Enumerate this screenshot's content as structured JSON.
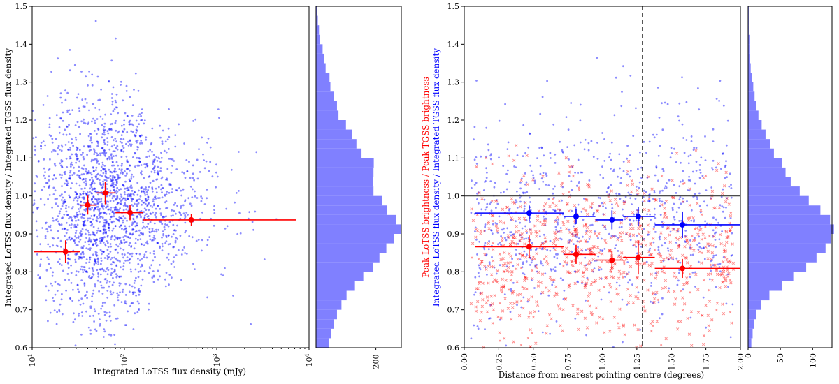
{
  "chart_data": [
    {
      "type": "scatter",
      "panel": "left",
      "xlabel": "Integrated LoTSS flux density (mJy)",
      "ylabel": "Integrated LoTSS flux density / Integrated TGSS flux density",
      "xscale": "log",
      "xlim": [
        10,
        10000
      ],
      "ylim": [
        0.6,
        1.5
      ],
      "x_ticks": [
        10,
        100,
        1000,
        10000
      ],
      "x_tick_labels": [
        {
          "base": "10",
          "exp": "1"
        },
        {
          "base": "10",
          "exp": "2"
        },
        {
          "base": "10",
          "exp": "3"
        },
        {
          "base": "10",
          "exp": "4"
        }
      ],
      "y_ticks": [
        "0.6",
        "0.7",
        "0.8",
        "0.9",
        "1.0",
        "1.1",
        "1.2",
        "1.3",
        "1.4",
        "1.5"
      ],
      "scatter_color": "#0000ff",
      "binned_color": "#ff0000",
      "binned_points": [
        {
          "x": 23,
          "y": 0.853,
          "xerr": [
            10.5,
            33
          ],
          "yerr": 0.03
        },
        {
          "x": 40,
          "y": 0.976,
          "xerr": [
            33,
            50
          ],
          "yerr": 0.025
        },
        {
          "x": 62,
          "y": 1.008,
          "xerr": [
            50,
            80
          ],
          "yerr": 0.03
        },
        {
          "x": 115,
          "y": 0.956,
          "xerr": [
            80,
            160
          ],
          "yerr": 0.02
        },
        {
          "x": 530,
          "y": 0.937,
          "xerr": [
            160,
            7200
          ],
          "yerr": 0.015
        }
      ]
    },
    {
      "type": "histogram",
      "panel": "left-marginal",
      "orientation": "horizontal",
      "xlim": [
        0,
        285
      ],
      "x_ticks": [
        "200"
      ],
      "bins": [
        {
          "y": [
            0.6,
            0.625
          ],
          "count": 42
        },
        {
          "y": [
            0.625,
            0.65
          ],
          "count": 50
        },
        {
          "y": [
            0.65,
            0.675
          ],
          "count": 60
        },
        {
          "y": [
            0.675,
            0.7
          ],
          "count": 70
        },
        {
          "y": [
            0.7,
            0.725
          ],
          "count": 85
        },
        {
          "y": [
            0.725,
            0.75
          ],
          "count": 102
        },
        {
          "y": [
            0.75,
            0.775
          ],
          "count": 130
        },
        {
          "y": [
            0.775,
            0.8
          ],
          "count": 158
        },
        {
          "y": [
            0.8,
            0.825
          ],
          "count": 190
        },
        {
          "y": [
            0.825,
            0.85
          ],
          "count": 212
        },
        {
          "y": [
            0.85,
            0.875
          ],
          "count": 235
        },
        {
          "y": [
            0.875,
            0.9
          ],
          "count": 260
        },
        {
          "y": [
            0.9,
            0.925
          ],
          "count": 283
        },
        {
          "y": [
            0.925,
            0.95
          ],
          "count": 268
        },
        {
          "y": [
            0.95,
            0.975
          ],
          "count": 237
        },
        {
          "y": [
            0.975,
            1.0
          ],
          "count": 220
        },
        {
          "y": [
            1.0,
            1.025
          ],
          "count": 192
        },
        {
          "y": [
            1.025,
            1.05
          ],
          "count": 190
        },
        {
          "y": [
            1.05,
            1.075
          ],
          "count": 192
        },
        {
          "y": [
            1.075,
            1.1
          ],
          "count": 193
        },
        {
          "y": [
            1.1,
            1.125
          ],
          "count": 152
        },
        {
          "y": [
            1.125,
            1.15
          ],
          "count": 135
        },
        {
          "y": [
            1.15,
            1.175
          ],
          "count": 120
        },
        {
          "y": [
            1.175,
            1.2
          ],
          "count": 100
        },
        {
          "y": [
            1.2,
            1.225
          ],
          "count": 75
        },
        {
          "y": [
            1.225,
            1.25
          ],
          "count": 70
        },
        {
          "y": [
            1.25,
            1.275
          ],
          "count": 60
        },
        {
          "y": [
            1.275,
            1.3
          ],
          "count": 48
        },
        {
          "y": [
            1.3,
            1.325
          ],
          "count": 45
        },
        {
          "y": [
            1.325,
            1.35
          ],
          "count": 32
        },
        {
          "y": [
            1.35,
            1.375
          ],
          "count": 28
        },
        {
          "y": [
            1.375,
            1.4
          ],
          "count": 22
        },
        {
          "y": [
            1.4,
            1.425
          ],
          "count": 14
        },
        {
          "y": [
            1.425,
            1.45
          ],
          "count": 10
        },
        {
          "y": [
            1.45,
            1.475
          ],
          "count": 6
        },
        {
          "y": [
            1.475,
            1.5
          ],
          "count": 3
        }
      ],
      "color": "#8080ff"
    },
    {
      "type": "scatter",
      "panel": "right",
      "xlabel": "Distance from nearest pointing centre (degrees)",
      "ylabel_lines": [
        {
          "text": "Integrated LoTSS flux density / Integrated TGSS flux density",
          "color": "#0000ff"
        },
        {
          "text": "Peak LoTSS brightness / Peak TGSS brightness",
          "color": "#ff0000"
        }
      ],
      "xlim": [
        0.0,
        2.0
      ],
      "ylim": [
        0.6,
        1.5
      ],
      "x_ticks": [
        "0.00",
        "0.25",
        "0.50",
        "0.75",
        "1.00",
        "1.25",
        "1.50",
        "1.75",
        "2.00"
      ],
      "y_ticks": [
        "0.6",
        "0.7",
        "0.8",
        "0.9",
        "1.0",
        "1.1",
        "1.2",
        "1.3",
        "1.4",
        "1.5"
      ],
      "reference_lines": {
        "horizontal_y": 1.0,
        "vertical_x_dashed": 1.29
      },
      "series": [
        {
          "marker": "dot",
          "color": "#0000ff",
          "binned_points": [
            {
              "x": 0.47,
              "y": 0.955,
              "xerr": [
                0.08,
                0.72
              ],
              "yerr": 0.02
            },
            {
              "x": 0.81,
              "y": 0.946,
              "xerr": [
                0.72,
                0.95
              ],
              "yerr": 0.02
            },
            {
              "x": 1.07,
              "y": 0.937,
              "xerr": [
                0.95,
                1.15
              ],
              "yerr": 0.025
            },
            {
              "x": 1.26,
              "y": 0.946,
              "xerr": [
                1.15,
                1.38
              ],
              "yerr": 0.025
            },
            {
              "x": 1.58,
              "y": 0.924,
              "xerr": [
                1.38,
                2.0
              ],
              "yerr": 0.035
            }
          ]
        },
        {
          "marker": "x",
          "color": "#ff0000",
          "binned_points": [
            {
              "x": 0.47,
              "y": 0.866,
              "xerr": [
                0.08,
                0.72
              ],
              "yerr": 0.03
            },
            {
              "x": 0.81,
              "y": 0.846,
              "xerr": [
                0.72,
                0.95
              ],
              "yerr": 0.025
            },
            {
              "x": 1.07,
              "y": 0.831,
              "xerr": [
                0.95,
                1.15
              ],
              "yerr": 0.025
            },
            {
              "x": 1.26,
              "y": 0.838,
              "xerr": [
                1.15,
                1.38
              ],
              "yerr": 0.045
            },
            {
              "x": 1.58,
              "y": 0.809,
              "xerr": [
                1.38,
                2.0
              ],
              "yerr": 0.025
            }
          ]
        }
      ]
    },
    {
      "type": "histogram",
      "panel": "right-marginal",
      "orientation": "horizontal",
      "xlim": [
        0,
        130
      ],
      "x_ticks": [
        "0",
        "50",
        "100"
      ],
      "bins": [
        {
          "y": [
            0.6,
            0.625
          ],
          "count": 5
        },
        {
          "y": [
            0.625,
            0.65
          ],
          "count": 7
        },
        {
          "y": [
            0.65,
            0.675
          ],
          "count": 9
        },
        {
          "y": [
            0.675,
            0.7
          ],
          "count": 12
        },
        {
          "y": [
            0.7,
            0.725
          ],
          "count": 20
        },
        {
          "y": [
            0.725,
            0.75
          ],
          "count": 33
        },
        {
          "y": [
            0.75,
            0.775
          ],
          "count": 52
        },
        {
          "y": [
            0.775,
            0.8
          ],
          "count": 70
        },
        {
          "y": [
            0.8,
            0.825
          ],
          "count": 90
        },
        {
          "y": [
            0.825,
            0.85
          ],
          "count": 106
        },
        {
          "y": [
            0.85,
            0.875
          ],
          "count": 120
        },
        {
          "y": [
            0.875,
            0.9
          ],
          "count": 128
        },
        {
          "y": [
            0.9,
            0.925
          ],
          "count": 133
        },
        {
          "y": [
            0.925,
            0.95
          ],
          "count": 127
        },
        {
          "y": [
            0.95,
            0.975
          ],
          "count": 112
        },
        {
          "y": [
            0.975,
            1.0
          ],
          "count": 94
        },
        {
          "y": [
            1.0,
            1.025
          ],
          "count": 80
        },
        {
          "y": [
            1.025,
            1.05
          ],
          "count": 66
        },
        {
          "y": [
            1.05,
            1.075
          ],
          "count": 58
        },
        {
          "y": [
            1.075,
            1.1
          ],
          "count": 52
        },
        {
          "y": [
            1.1,
            1.125
          ],
          "count": 40
        },
        {
          "y": [
            1.125,
            1.15
          ],
          "count": 34
        },
        {
          "y": [
            1.15,
            1.175
          ],
          "count": 27
        },
        {
          "y": [
            1.175,
            1.2
          ],
          "count": 21
        },
        {
          "y": [
            1.2,
            1.225
          ],
          "count": 16
        },
        {
          "y": [
            1.225,
            1.25
          ],
          "count": 12
        },
        {
          "y": [
            1.25,
            1.275
          ],
          "count": 10
        },
        {
          "y": [
            1.275,
            1.3
          ],
          "count": 8
        },
        {
          "y": [
            1.3,
            1.325
          ],
          "count": 6
        },
        {
          "y": [
            1.325,
            1.35
          ],
          "count": 4
        },
        {
          "y": [
            1.35,
            1.375
          ],
          "count": 3
        },
        {
          "y": [
            1.375,
            1.4
          ],
          "count": 2
        },
        {
          "y": [
            1.4,
            1.425
          ],
          "count": 2
        },
        {
          "y": [
            1.425,
            1.45
          ],
          "count": 1
        },
        {
          "y": [
            1.45,
            1.475
          ],
          "count": 1
        },
        {
          "y": [
            1.475,
            1.5
          ],
          "count": 1
        }
      ],
      "color": "#8080ff"
    }
  ]
}
